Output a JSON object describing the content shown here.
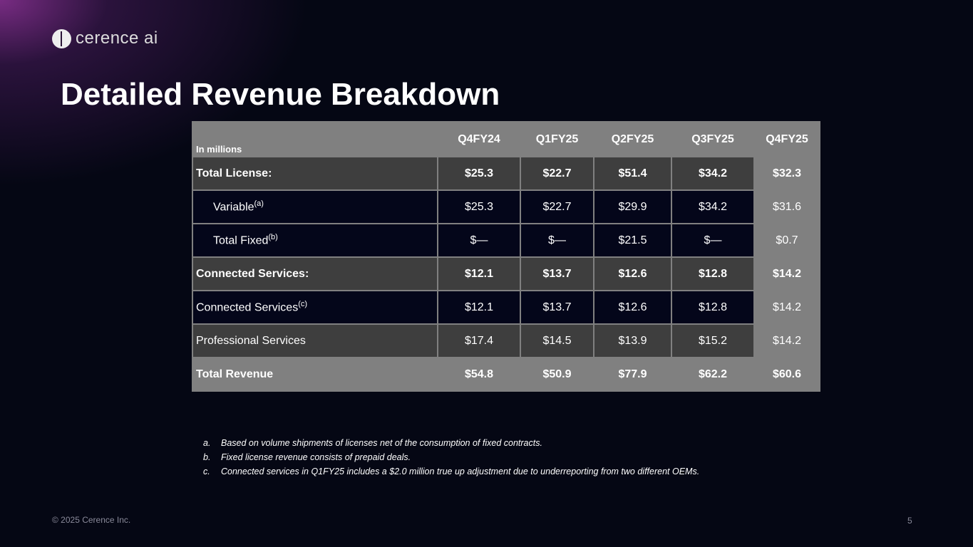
{
  "brand": {
    "logo_text": "cerence ai"
  },
  "title": "Detailed Revenue Breakdown",
  "table": {
    "unit_label": "In millions",
    "columns": [
      "Q4FY24",
      "Q1FY25",
      "Q2FY25",
      "Q3FY25",
      "Q4FY25"
    ],
    "rows": [
      {
        "label": "Total License:",
        "sup": "",
        "values": [
          "$25.3",
          "$22.7",
          "$51.4",
          "$34.2",
          "$32.3"
        ]
      },
      {
        "label": "Variable",
        "sup": "(a)",
        "values": [
          "$25.3",
          "$22.7",
          "$29.9",
          "$34.2",
          "$31.6"
        ]
      },
      {
        "label": "Total Fixed",
        "sup": "(b)",
        "values": [
          "$—",
          "$—",
          "$21.5",
          "$—",
          "$0.7"
        ]
      },
      {
        "label": "Connected Services:",
        "sup": "",
        "values": [
          "$12.1",
          "$13.7",
          "$12.6",
          "$12.8",
          "$14.2"
        ]
      },
      {
        "label": "Connected Services",
        "sup": "(c)",
        "values": [
          "$12.1",
          "$13.7",
          "$12.6",
          "$12.8",
          "$14.2"
        ]
      },
      {
        "label": "Professional Services",
        "sup": "",
        "values": [
          "$17.4",
          "$14.5",
          "$13.9",
          "$15.2",
          "$14.2"
        ]
      },
      {
        "label": "Total Revenue",
        "sup": "",
        "values": [
          "$54.8",
          "$50.9",
          "$77.9",
          "$62.2",
          "$60.6"
        ]
      }
    ]
  },
  "footnotes": [
    {
      "marker": "a.",
      "text": "Based on volume shipments of licenses net of the consumption of fixed contracts."
    },
    {
      "marker": "b.",
      "text": "Fixed license revenue consists of prepaid deals."
    },
    {
      "marker": "c.",
      "text": "Connected services in Q1FY25 includes a $2.0 million true up adjustment due to underreporting from two different OEMs."
    }
  ],
  "footer": {
    "copyright": "© 2025 Cerence Inc.",
    "page_number": "5"
  }
}
